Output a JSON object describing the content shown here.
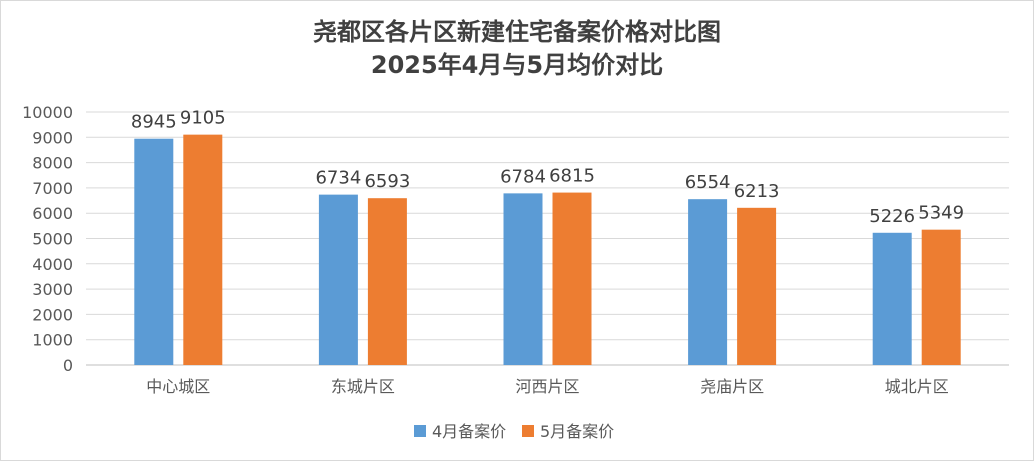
{
  "chart_data": {
    "type": "bar",
    "title": "尧都区各片区新建住宅备案价格对比图",
    "subtitle": "2025年4月与5月均价对比",
    "categories": [
      "中心城区",
      "东城片区",
      "河西片区",
      "尧庙片区",
      "城北片区"
    ],
    "series": [
      {
        "name": "4月备案价",
        "color": "#5b9bd5",
        "values": [
          8945,
          6734,
          6784,
          6554,
          5226
        ]
      },
      {
        "name": "5月备案价",
        "color": "#ed7d31",
        "values": [
          9105,
          6593,
          6815,
          6213,
          5349
        ]
      }
    ],
    "xlabel": "",
    "ylabel": "",
    "ylim": [
      0,
      10000
    ],
    "yticks": [
      0,
      1000,
      2000,
      3000,
      4000,
      5000,
      6000,
      7000,
      8000,
      9000,
      10000
    ],
    "grid": true,
    "legend": "bottom",
    "data_labels": true
  }
}
